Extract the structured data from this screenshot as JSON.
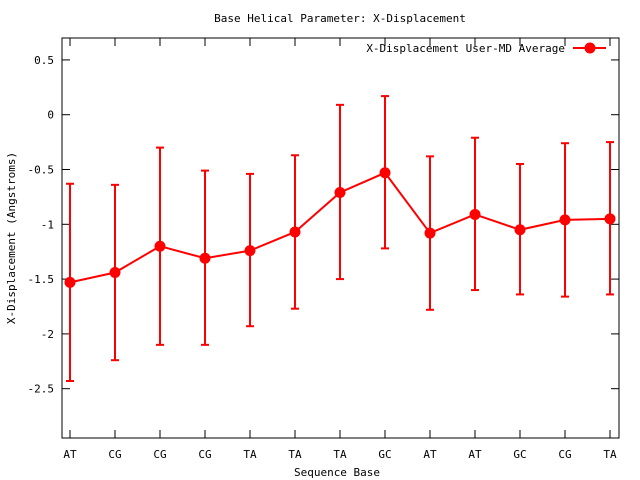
{
  "chart_data": {
    "type": "line",
    "title": "Base  Helical Parameter: X-Displacement",
    "xlabel": "Sequence Base",
    "ylabel": "X-Displacement (Angstroms)",
    "categories": [
      "AT",
      "CG",
      "CG",
      "CG",
      "TA",
      "TA",
      "TA",
      "GC",
      "AT",
      "AT",
      "GC",
      "CG",
      "TA"
    ],
    "ylim": [
      -2.95,
      0.7
    ],
    "yticks": [
      0.5,
      0,
      -0.5,
      -1,
      -1.5,
      -2,
      -2.5
    ],
    "ytick_labels": [
      "0.5",
      "0",
      "-0.5",
      "-1",
      "-1.5",
      "-2",
      "-2.5"
    ],
    "grid": false,
    "legend_position": "top-right",
    "series": [
      {
        "name": "X-Displacement User-MD Average",
        "color": "#ff0000",
        "values": [
          -1.53,
          -1.44,
          -1.2,
          -1.31,
          -1.24,
          -1.07,
          -0.71,
          -0.53,
          -1.08,
          -0.91,
          -1.05,
          -0.96,
          -0.95
        ],
        "err_low": [
          -2.43,
          -2.24,
          -2.1,
          -2.1,
          -1.93,
          -1.77,
          -1.5,
          -1.22,
          -1.78,
          -1.6,
          -1.64,
          -1.66,
          -1.64
        ],
        "err_high": [
          -0.63,
          -0.64,
          -0.3,
          -0.51,
          -0.54,
          -0.37,
          0.09,
          0.17,
          -0.38,
          -0.21,
          -0.45,
          -0.26,
          -0.25
        ]
      }
    ]
  }
}
